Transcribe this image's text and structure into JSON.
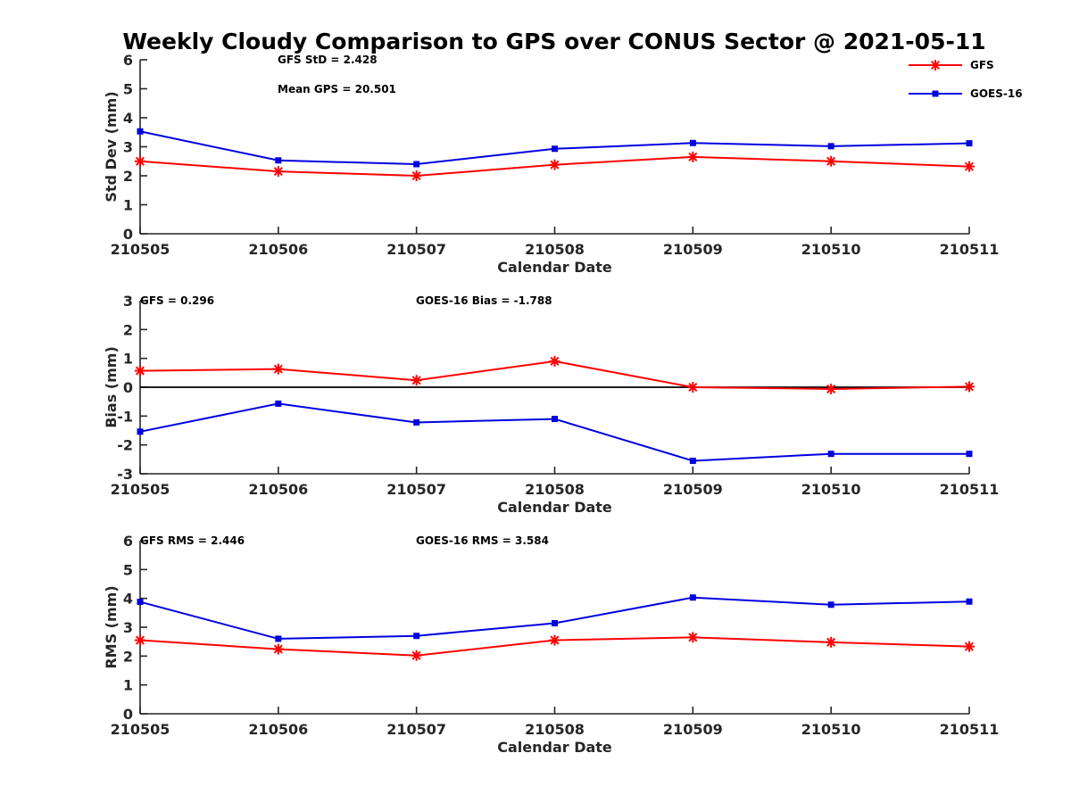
{
  "title": "Weekly Cloudy Comparison to GPS over CONUS Sector @ 2021-05-11",
  "colors": {
    "GFS": "#ff0000",
    "GOES-16": "#0000e0",
    "zero_line": "#000000",
    "axis": "#262626"
  },
  "legend": {
    "placement": "top-right",
    "entries": [
      {
        "name": "GFS",
        "marker": "asterisk"
      },
      {
        "name": "GOES-16",
        "marker": "square"
      }
    ]
  },
  "chart_data": [
    {
      "type": "line",
      "id": "std",
      "xlabel": "Calendar Date",
      "ylabel": "Std Dev (mm)",
      "categories": [
        "210505",
        "210506",
        "210507",
        "210508",
        "210509",
        "210510",
        "210511"
      ],
      "ylim": [
        0,
        6
      ],
      "yticks": [
        "0",
        "1",
        "2",
        "3",
        "4",
        "5",
        "6"
      ],
      "series": [
        {
          "name": "GFS",
          "values": [
            2.5,
            2.15,
            2.0,
            2.38,
            2.65,
            2.5,
            2.32
          ]
        },
        {
          "name": "GOES-16",
          "values": [
            3.53,
            2.53,
            2.4,
            2.93,
            3.13,
            3.02,
            3.12
          ]
        }
      ],
      "annotations": [
        "GFS StD = 2.428",
        "Mean GPS = 20.501"
      ],
      "zero_line": false
    },
    {
      "type": "line",
      "id": "bias",
      "xlabel": "Calendar Date",
      "ylabel": "Bias (mm)",
      "categories": [
        "210505",
        "210506",
        "210507",
        "210508",
        "210509",
        "210510",
        "210511"
      ],
      "ylim": [
        -3,
        3
      ],
      "yticks": [
        "-3",
        "-2",
        "-1",
        "0",
        "1",
        "2",
        "3"
      ],
      "series": [
        {
          "name": "GFS",
          "values": [
            0.57,
            0.63,
            0.24,
            0.9,
            0.0,
            -0.06,
            0.02
          ]
        },
        {
          "name": "GOES-16",
          "values": [
            -1.54,
            -0.57,
            -1.22,
            -1.1,
            -2.55,
            -2.31,
            -2.31
          ]
        }
      ],
      "annotations": [
        "GFS = 0.296",
        "GOES-16 Bias  = -1.788"
      ],
      "zero_line": true
    },
    {
      "type": "line",
      "id": "rms",
      "xlabel": "Calendar Date",
      "ylabel": "RMS (mm)",
      "categories": [
        "210505",
        "210506",
        "210507",
        "210508",
        "210509",
        "210510",
        "210511"
      ],
      "ylim": [
        0,
        6
      ],
      "yticks": [
        "0",
        "1",
        "2",
        "3",
        "4",
        "5",
        "6"
      ],
      "series": [
        {
          "name": "GFS",
          "values": [
            2.55,
            2.24,
            2.02,
            2.55,
            2.65,
            2.48,
            2.33
          ]
        },
        {
          "name": "GOES-16",
          "values": [
            3.88,
            2.6,
            2.7,
            3.14,
            4.03,
            3.78,
            3.89
          ]
        }
      ],
      "annotations": [
        "GFS RMS = 2.446",
        "GOES-16 RMS = 3.584"
      ],
      "zero_line": false
    }
  ]
}
